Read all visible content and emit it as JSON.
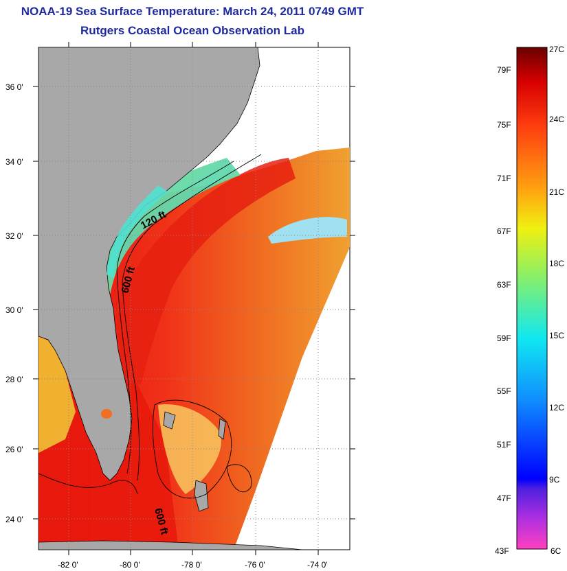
{
  "title": "NOAA-19 Sea Surface Temperature:  March 24, 2011 0749 GMT",
  "subtitle": "Rutgers Coastal Ocean Observation Lab",
  "map": {
    "lat_labels": [
      "36 0'",
      "34 0'",
      "32 0'",
      "30 0'",
      "28 0'",
      "26 0'",
      "24 0'"
    ],
    "lon_labels": [
      "-82 0'",
      "-80 0'",
      "-78 0'",
      "-76 0'",
      "-74 0'"
    ],
    "lat_range": [
      23,
      37
    ],
    "lon_range": [
      -83,
      -73
    ],
    "contour_labels": [
      "120 ft",
      "600 ft",
      "600 ft"
    ],
    "land_color": "#a8a8a8",
    "warm_color": "#ee2a14",
    "shelf_color": "#7ee070"
  },
  "colorbar": {
    "fahrenheit_labels": [
      "79F",
      "75F",
      "71F",
      "67F",
      "63F",
      "59F",
      "55F",
      "51F",
      "47F",
      "43F"
    ],
    "celsius_labels": [
      "27C",
      "24C",
      "21C",
      "18C",
      "15C",
      "12C",
      "9C",
      "6C"
    ],
    "range_c": [
      6,
      27
    ],
    "stops": [
      "#ff40c0",
      "#9020e0",
      "#1010e0",
      "#1090ff",
      "#10e0f0",
      "#80f080",
      "#f0f010",
      "#ffa010",
      "#ff5010",
      "#e00000",
      "#6a0000"
    ]
  }
}
